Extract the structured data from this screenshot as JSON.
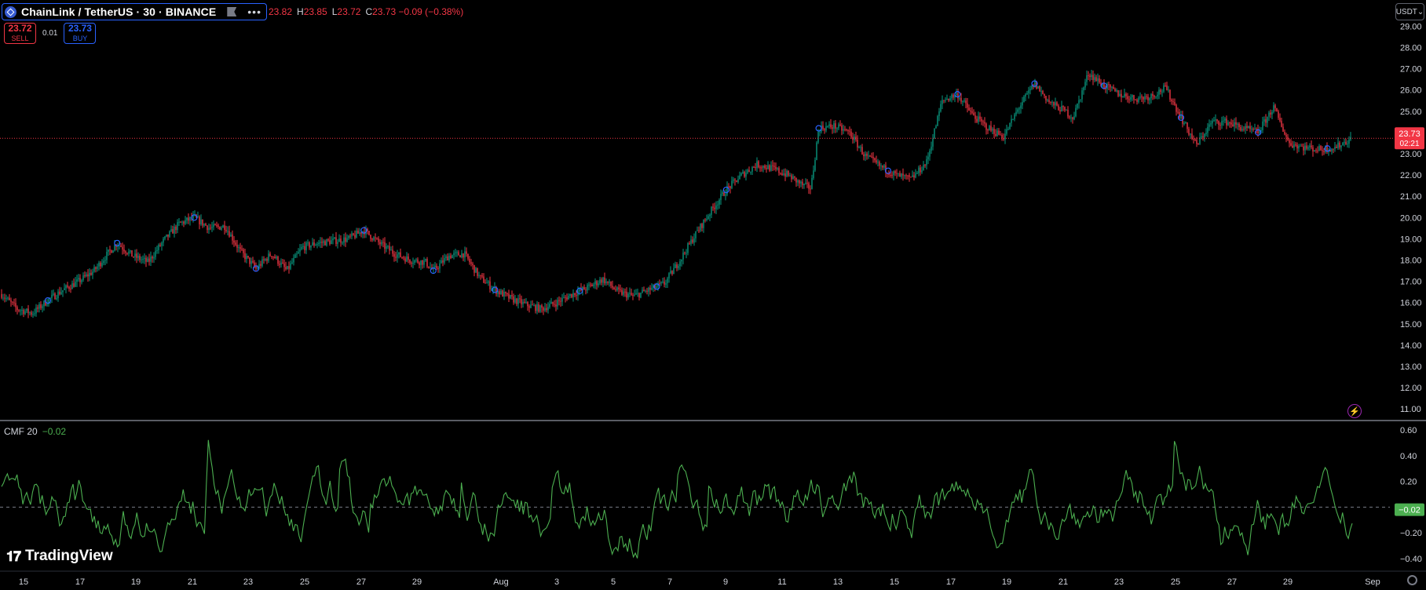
{
  "header": {
    "symbol": "ChainLink / TetherUS · 30 · BINANCE",
    "more": "•••",
    "ohlc": [
      {
        "key": "",
        "value": "23.82"
      },
      {
        "key": "H",
        "value": "23.85"
      },
      {
        "key": "L",
        "value": "23.72"
      },
      {
        "key": "C",
        "value": "23.73 −0.09 (−0.38%)"
      }
    ]
  },
  "trade": {
    "sell_price": "23.72",
    "sell_label": "SELL",
    "spread": "0.01",
    "buy_price": "23.73",
    "buy_label": "BUY"
  },
  "currency": "USDT",
  "indicator": {
    "name": "CMF 20",
    "value": "−0.02"
  },
  "branding": "TradingView",
  "colors": {
    "up": "#089981",
    "down": "#f23645",
    "cmf": "#4caf50",
    "last_price_bg": "#f23645",
    "cmf_value_bg": "#4caf50",
    "marker": "#2962ff"
  },
  "chart_data": {
    "type": "candlestick",
    "price_axis": {
      "labels": [
        "29.00",
        "28.00",
        "27.00",
        "26.00",
        "25.00",
        "24.00",
        "23.00",
        "22.00",
        "21.00",
        "20.00",
        "19.00",
        "18.00",
        "17.00",
        "16.00",
        "15.00",
        "14.00",
        "13.00",
        "12.00",
        "11.00"
      ],
      "range": [
        10.6,
        29.2
      ]
    },
    "last_price": {
      "value": 23.73,
      "label": "23.73",
      "countdown": "02:21"
    },
    "time_axis": [
      "15",
      "17",
      "19",
      "21",
      "23",
      "25",
      "27",
      "29",
      "Aug",
      "3",
      "5",
      "7",
      "9",
      "11",
      "13",
      "15",
      "17",
      "19",
      "21",
      "23",
      "25",
      "27",
      "29",
      "Sep"
    ],
    "price_path": [
      [
        0,
        16.4
      ],
      [
        2,
        15.7
      ],
      [
        4,
        15.5
      ],
      [
        6,
        16.1
      ],
      [
        8,
        16.6
      ],
      [
        10,
        17.0
      ],
      [
        12,
        17.5
      ],
      [
        14,
        18.4
      ],
      [
        15,
        18.8
      ],
      [
        17,
        18.2
      ],
      [
        19,
        17.9
      ],
      [
        21,
        18.9
      ],
      [
        23,
        19.7
      ],
      [
        25,
        20.0
      ],
      [
        27,
        19.5
      ],
      [
        29,
        19.6
      ],
      [
        31,
        18.4
      ],
      [
        33,
        17.6
      ],
      [
        35,
        18.3
      ],
      [
        37,
        17.5
      ],
      [
        39,
        18.6
      ],
      [
        41,
        18.8
      ],
      [
        43,
        18.9
      ],
      [
        45,
        19.0
      ],
      [
        47,
        19.4
      ],
      [
        49,
        18.8
      ],
      [
        51,
        18.3
      ],
      [
        53,
        18.0
      ],
      [
        55,
        17.9
      ],
      [
        56,
        17.5
      ],
      [
        58,
        18.2
      ],
      [
        60,
        18.3
      ],
      [
        62,
        17.2
      ],
      [
        64,
        16.6
      ],
      [
        66,
        16.2
      ],
      [
        68,
        15.9
      ],
      [
        70,
        15.7
      ],
      [
        72,
        16.0
      ],
      [
        74,
        16.4
      ],
      [
        76,
        16.7
      ],
      [
        78,
        17.1
      ],
      [
        80,
        16.5
      ],
      [
        82,
        16.3
      ],
      [
        84,
        16.6
      ],
      [
        86,
        16.9
      ],
      [
        88,
        18.0
      ],
      [
        90,
        19.2
      ],
      [
        92,
        20.3
      ],
      [
        94,
        21.3
      ],
      [
        96,
        22.0
      ],
      [
        98,
        22.5
      ],
      [
        100,
        22.3
      ],
      [
        102,
        22.0
      ],
      [
        104,
        21.5
      ],
      [
        105,
        21.4
      ],
      [
        106,
        24.2
      ],
      [
        108,
        24.3
      ],
      [
        110,
        24.0
      ],
      [
        112,
        22.9
      ],
      [
        114,
        22.4
      ],
      [
        116,
        22.0
      ],
      [
        118,
        21.8
      ],
      [
        120,
        22.6
      ],
      [
        122,
        25.5
      ],
      [
        124,
        25.8
      ],
      [
        126,
        24.8
      ],
      [
        128,
        24.2
      ],
      [
        130,
        23.8
      ],
      [
        132,
        25.2
      ],
      [
        134,
        26.3
      ],
      [
        136,
        25.4
      ],
      [
        138,
        25.0
      ],
      [
        139,
        24.7
      ],
      [
        141,
        26.8
      ],
      [
        143,
        26.2
      ],
      [
        145,
        25.8
      ],
      [
        147,
        25.6
      ],
      [
        149,
        25.7
      ],
      [
        151,
        26.1
      ],
      [
        153,
        24.7
      ],
      [
        155,
        23.4
      ],
      [
        157,
        24.5
      ],
      [
        159,
        24.5
      ],
      [
        161,
        24.2
      ],
      [
        163,
        24.0
      ],
      [
        165,
        25.2
      ],
      [
        167,
        23.5
      ],
      [
        169,
        23.3
      ],
      [
        171,
        23.2
      ],
      [
        173,
        23.3
      ],
      [
        175,
        23.7
      ]
    ],
    "indicator": {
      "name": "CMF 20",
      "axis_labels": [
        "0.60",
        "0.40",
        "0.20",
        "−0.20",
        "−0.40"
      ],
      "range": [
        -0.45,
        0.65
      ],
      "last_value": "−0.02"
    }
  }
}
